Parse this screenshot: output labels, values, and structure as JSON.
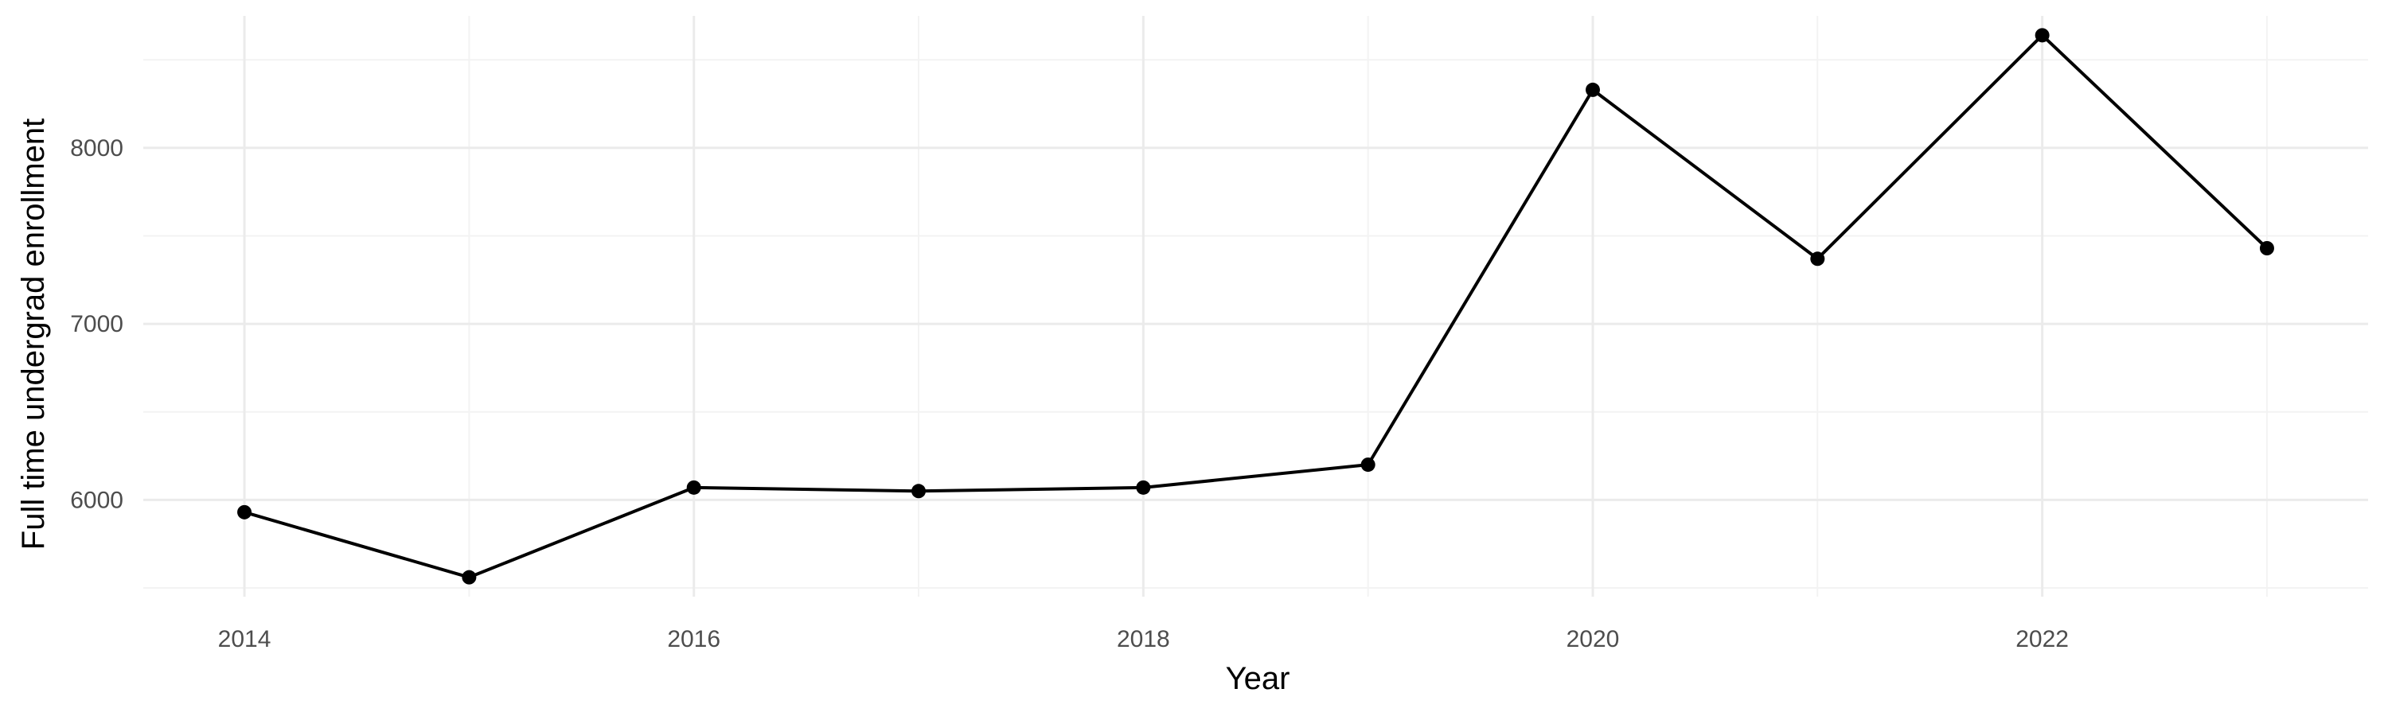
{
  "chart_data": {
    "type": "line",
    "title": "",
    "xlabel": "Year",
    "ylabel": "Full time undergrad enrollment",
    "x": [
      2014,
      2015,
      2016,
      2017,
      2018,
      2019,
      2020,
      2021,
      2022,
      2023
    ],
    "series": [
      {
        "values": [
          5930,
          5560,
          6070,
          6050,
          6070,
          6200,
          8330,
          7370,
          8640,
          7430
        ]
      }
    ],
    "xlim": [
      2013.55,
      2023.45
    ],
    "ylim": [
      5450,
      8750
    ],
    "x_ticks": [
      2014,
      2016,
      2018,
      2020,
      2022
    ],
    "x_minor_ticks": [
      2015,
      2017,
      2019,
      2021,
      2023
    ],
    "y_ticks": [
      6000,
      7000,
      8000
    ],
    "y_minor_ticks": [
      5500,
      6500,
      7500,
      8500
    ],
    "grid": true,
    "legend": "none",
    "colors": {
      "line": "#000000",
      "point": "#000000",
      "grid_major": "#ebebeb",
      "grid_minor": "#f3f3f3",
      "tick_text": "#4d4d4d",
      "axis_title": "#000000"
    }
  }
}
